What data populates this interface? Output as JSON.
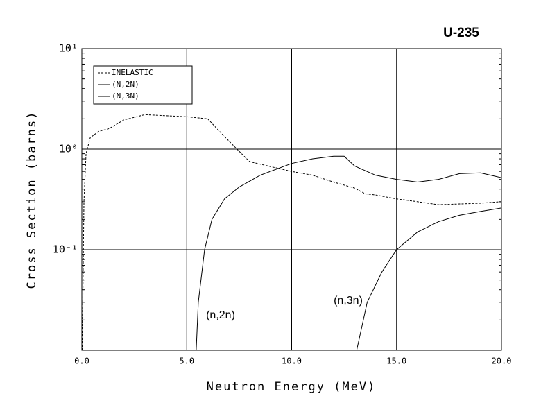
{
  "chart_data": {
    "type": "line",
    "title": "U-235",
    "xlabel": "Neutron Energy (MeV)",
    "ylabel": "Cross Section (barns)",
    "xlim": [
      0,
      20
    ],
    "ylim": [
      0.01,
      10
    ],
    "log_y": true,
    "grid": true,
    "xticks": [
      {
        "value": 0,
        "label": "0.0"
      },
      {
        "value": 5,
        "label": "5.0"
      },
      {
        "value": 10,
        "label": "10.0"
      },
      {
        "value": 15,
        "label": "15.0"
      },
      {
        "value": 20,
        "label": "20.0"
      }
    ],
    "yticks": [
      {
        "value": 0.1,
        "label": "10⁻¹"
      },
      {
        "value": 1,
        "label": "10⁰"
      },
      {
        "value": 10,
        "label": "10¹"
      }
    ],
    "legend": "upper left",
    "series": [
      {
        "name": "INELASTIC",
        "color": "#000000",
        "dash": true,
        "x": [
          0.02,
          0.1,
          0.2,
          0.4,
          0.8,
          1.3,
          2.0,
          3.0,
          4.0,
          5.0,
          6.0,
          6.7,
          7.5,
          8.0,
          9.0,
          10.0,
          11.0,
          12.0,
          13.0,
          13.5,
          14.0,
          15.0,
          16.0,
          17.0,
          18.0,
          19.0,
          20.0
        ],
        "values": [
          0.01,
          0.3,
          0.9,
          1.3,
          1.5,
          1.6,
          1.95,
          2.2,
          2.15,
          2.1,
          2.0,
          1.4,
          0.95,
          0.75,
          0.67,
          0.6,
          0.55,
          0.47,
          0.41,
          0.36,
          0.35,
          0.32,
          0.3,
          0.28,
          0.285,
          0.29,
          0.3
        ]
      },
      {
        "name": "(N,2N)",
        "color": "#000000",
        "dash": false,
        "x": [
          5.45,
          5.55,
          5.85,
          6.2,
          6.8,
          7.5,
          8.5,
          10.0,
          11.0,
          12.0,
          12.5,
          13.0,
          14.0,
          15.0,
          16.0,
          17.0,
          18.0,
          19.0,
          20.0
        ],
        "values": [
          0.01,
          0.03,
          0.1,
          0.2,
          0.32,
          0.42,
          0.55,
          0.72,
          0.8,
          0.85,
          0.85,
          0.68,
          0.55,
          0.5,
          0.47,
          0.5,
          0.57,
          0.58,
          0.52
        ]
      },
      {
        "name": "(N,3N)",
        "color": "#000000",
        "dash": false,
        "x": [
          13.1,
          13.6,
          14.3,
          15.0,
          16.0,
          17.0,
          18.0,
          19.0,
          20.0
        ],
        "values": [
          0.01,
          0.03,
          0.06,
          0.1,
          0.15,
          0.19,
          0.22,
          0.24,
          0.26
        ]
      }
    ],
    "annotations": [
      "(n,2n)",
      "(n,3n)"
    ]
  }
}
